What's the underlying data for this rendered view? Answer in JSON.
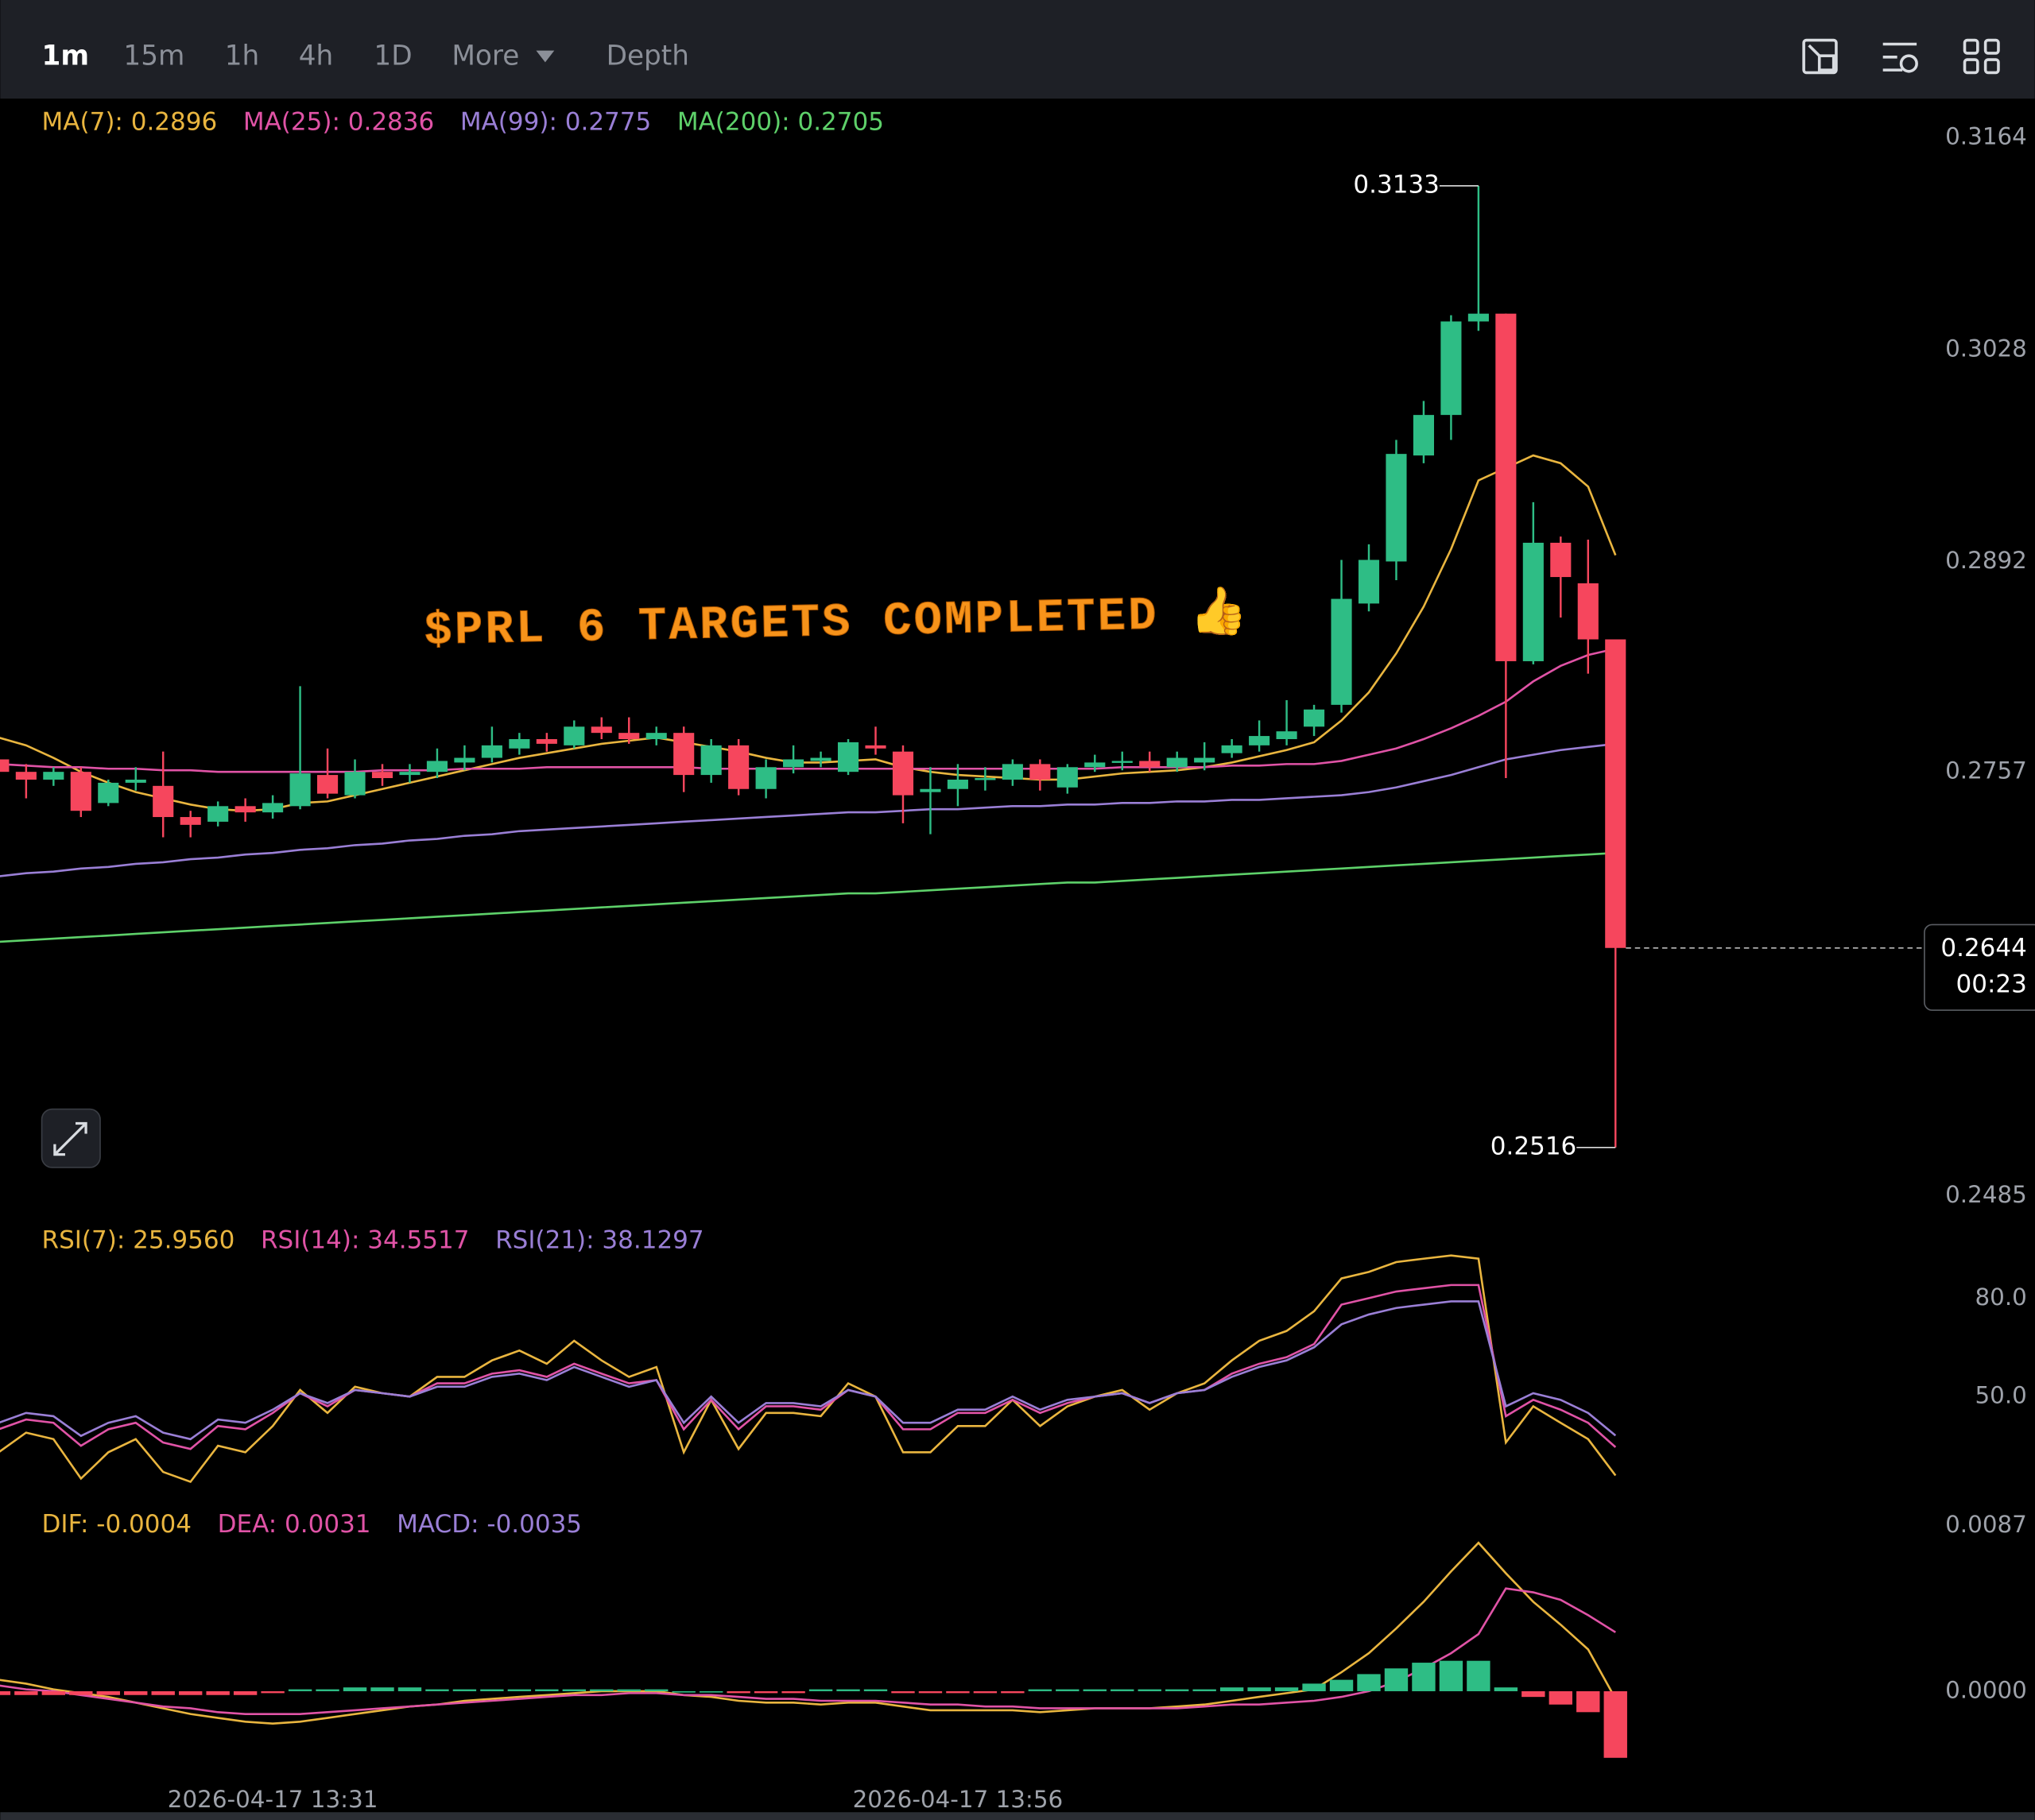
{
  "toolbar": {
    "intervals": [
      "1m",
      "15m",
      "1h",
      "4h",
      "1D"
    ],
    "more": "More",
    "depth": "Depth"
  },
  "chart_data": [
    {
      "type": "candlestick",
      "annotation": "$PRL 6 TARGETS COMPLETED 👍",
      "countdown": "00:23",
      "up_color": "#2ebd85",
      "down_color": "#f6465d",
      "categories": [
        null,
        null,
        null,
        null,
        null,
        null,
        null,
        null,
        null,
        null,
        "2026-04-17 13:31",
        null,
        null,
        null,
        null,
        null,
        null,
        null,
        null,
        null,
        null,
        null,
        null,
        null,
        null,
        null,
        null,
        null,
        null,
        null,
        null,
        null,
        null,
        null,
        null,
        "2026-04-17 13:56",
        null,
        null,
        null,
        null,
        null,
        null,
        null,
        null,
        null,
        null,
        null,
        null,
        null,
        null,
        null,
        null,
        null,
        null,
        null,
        null,
        null,
        null,
        null,
        null
      ],
      "open": [
        0.2765,
        0.2757,
        0.2752,
        0.2757,
        0.2737,
        0.275,
        0.2748,
        0.2728,
        0.2725,
        0.2735,
        0.2731,
        0.2735,
        0.2755,
        0.2742,
        0.2757,
        0.2755,
        0.2757,
        0.2763,
        0.2766,
        0.2772,
        0.2778,
        0.2774,
        0.2786,
        0.2782,
        0.2778,
        0.2782,
        0.2755,
        0.2774,
        0.2746,
        0.276,
        0.2764,
        0.2757,
        0.2774,
        0.277,
        0.2744,
        0.2746,
        0.2752,
        0.2752,
        0.2762,
        0.2747,
        0.276,
        0.2763,
        0.2764,
        0.276,
        0.2763,
        0.2769,
        0.2774,
        0.2778,
        0.2786,
        0.28,
        0.2865,
        0.2892,
        0.296,
        0.2986,
        0.3046,
        0.3051,
        0.2828,
        0.2904,
        0.2878,
        0.2842
      ],
      "high": [
        0.277,
        0.2762,
        0.276,
        0.276,
        0.2752,
        0.276,
        0.277,
        0.2732,
        0.2738,
        0.274,
        0.2742,
        0.2812,
        0.2772,
        0.2765,
        0.2762,
        0.2762,
        0.2772,
        0.2774,
        0.2786,
        0.2782,
        0.2782,
        0.279,
        0.2792,
        0.2792,
        0.2786,
        0.2786,
        0.2778,
        0.2778,
        0.2765,
        0.2774,
        0.277,
        0.2778,
        0.2786,
        0.2774,
        0.276,
        0.2762,
        0.276,
        0.2765,
        0.2765,
        0.2762,
        0.2768,
        0.277,
        0.277,
        0.277,
        0.2776,
        0.2778,
        0.279,
        0.2803,
        0.28,
        0.2893,
        0.2903,
        0.297,
        0.2995,
        0.305,
        0.3133,
        0.3051,
        0.293,
        0.2908,
        0.2906,
        0.2842
      ],
      "low": [
        0.275,
        0.274,
        0.2748,
        0.2728,
        0.2735,
        0.2745,
        0.2715,
        0.2715,
        0.2722,
        0.2725,
        0.2727,
        0.2733,
        0.274,
        0.274,
        0.2748,
        0.275,
        0.2753,
        0.2758,
        0.2763,
        0.2768,
        0.277,
        0.2772,
        0.2778,
        0.2775,
        0.2774,
        0.2744,
        0.275,
        0.2742,
        0.274,
        0.2756,
        0.276,
        0.2755,
        0.2768,
        0.2724,
        0.2717,
        0.2735,
        0.2745,
        0.2748,
        0.2745,
        0.2743,
        0.2757,
        0.2758,
        0.2757,
        0.2757,
        0.2758,
        0.2766,
        0.277,
        0.2774,
        0.278,
        0.2795,
        0.286,
        0.288,
        0.2955,
        0.297,
        0.304,
        0.2753,
        0.2826,
        0.2856,
        0.282,
        0.2516
      ],
      "close": [
        0.2757,
        0.2752,
        0.2757,
        0.2732,
        0.275,
        0.2752,
        0.2728,
        0.2723,
        0.2735,
        0.2731,
        0.2737,
        0.2756,
        0.2743,
        0.2757,
        0.2753,
        0.2757,
        0.2764,
        0.2766,
        0.2774,
        0.2778,
        0.2775,
        0.2786,
        0.2782,
        0.2778,
        0.2782,
        0.2755,
        0.2774,
        0.2746,
        0.276,
        0.2765,
        0.2766,
        0.2776,
        0.2772,
        0.2742,
        0.2746,
        0.2752,
        0.2753,
        0.2762,
        0.2752,
        0.276,
        0.2763,
        0.2764,
        0.276,
        0.2766,
        0.2766,
        0.2774,
        0.278,
        0.2783,
        0.2797,
        0.2868,
        0.2893,
        0.2961,
        0.2986,
        0.3046,
        0.3051,
        0.2828,
        0.2904,
        0.2882,
        0.2842,
        0.2644
      ],
      "series": [
        {
          "name": "MA(7): 0.2896",
          "color": "#e9b53f",
          "values": [
            0.2779,
            0.2774,
            0.2766,
            0.2757,
            0.275,
            0.2744,
            0.274,
            0.2736,
            0.2733,
            0.2732,
            0.2733,
            0.2737,
            0.2738,
            0.2742,
            0.2746,
            0.275,
            0.2754,
            0.2758,
            0.2762,
            0.2766,
            0.2769,
            0.2772,
            0.2775,
            0.2777,
            0.2779,
            0.2776,
            0.2773,
            0.277,
            0.2766,
            0.2763,
            0.2763,
            0.2764,
            0.2765,
            0.276,
            0.2757,
            0.2755,
            0.2754,
            0.2753,
            0.2752,
            0.2752,
            0.2754,
            0.2756,
            0.2757,
            0.2758,
            0.276,
            0.2763,
            0.2767,
            0.2771,
            0.2776,
            0.279,
            0.2808,
            0.2833,
            0.2863,
            0.29,
            0.2944,
            0.2952,
            0.296,
            0.2955,
            0.294,
            0.2896
          ]
        },
        {
          "name": "MA(25): 0.2836",
          "color": "#e053a6",
          "values": [
            0.2762,
            0.2761,
            0.276,
            0.276,
            0.2759,
            0.2759,
            0.2758,
            0.2758,
            0.2757,
            0.2757,
            0.2757,
            0.2757,
            0.2757,
            0.2757,
            0.2758,
            0.2758,
            0.2758,
            0.2759,
            0.2759,
            0.2759,
            0.276,
            0.276,
            0.276,
            0.276,
            0.276,
            0.276,
            0.2759,
            0.2759,
            0.2759,
            0.2759,
            0.2759,
            0.2759,
            0.2759,
            0.2759,
            0.2759,
            0.2759,
            0.2759,
            0.2759,
            0.2759,
            0.2759,
            0.2759,
            0.276,
            0.276,
            0.276,
            0.276,
            0.2761,
            0.2761,
            0.2762,
            0.2762,
            0.2764,
            0.2768,
            0.2772,
            0.2778,
            0.2785,
            0.2793,
            0.2802,
            0.2815,
            0.2825,
            0.2832,
            0.2836
          ]
        },
        {
          "name": "MA(99): 0.2775",
          "color": "#9a7fd6",
          "values": [
            0.269,
            0.2692,
            0.2693,
            0.2695,
            0.2696,
            0.2698,
            0.2699,
            0.2701,
            0.2702,
            0.2704,
            0.2705,
            0.2707,
            0.2708,
            0.271,
            0.2711,
            0.2713,
            0.2714,
            0.2716,
            0.2717,
            0.2719,
            0.272,
            0.2721,
            0.2722,
            0.2723,
            0.2724,
            0.2725,
            0.2726,
            0.2727,
            0.2728,
            0.2729,
            0.273,
            0.2731,
            0.2731,
            0.2732,
            0.2733,
            0.2733,
            0.2734,
            0.2735,
            0.2735,
            0.2736,
            0.2736,
            0.2737,
            0.2737,
            0.2738,
            0.2738,
            0.2739,
            0.2739,
            0.274,
            0.2741,
            0.2742,
            0.2744,
            0.2747,
            0.2751,
            0.2755,
            0.276,
            0.2765,
            0.2768,
            0.2771,
            0.2773,
            0.2775
          ]
        },
        {
          "name": "MA(200): 0.2705",
          "color": "#5ed16a",
          "values": [
            0.2648,
            0.2649,
            0.265,
            0.2651,
            0.2652,
            0.2653,
            0.2654,
            0.2655,
            0.2656,
            0.2657,
            0.2658,
            0.2659,
            0.266,
            0.2661,
            0.2662,
            0.2663,
            0.2664,
            0.2665,
            0.2666,
            0.2667,
            0.2668,
            0.2669,
            0.267,
            0.2671,
            0.2672,
            0.2673,
            0.2674,
            0.2675,
            0.2676,
            0.2677,
            0.2678,
            0.2679,
            0.2679,
            0.268,
            0.2681,
            0.2682,
            0.2683,
            0.2684,
            0.2685,
            0.2686,
            0.2686,
            0.2687,
            0.2688,
            0.2689,
            0.269,
            0.2691,
            0.2692,
            0.2693,
            0.2694,
            0.2695,
            0.2696,
            0.2697,
            0.2698,
            0.2699,
            0.27,
            0.2701,
            0.2702,
            0.2703,
            0.2704,
            0.2705
          ]
        }
      ],
      "ylim": [
        0.2474,
        0.3189
      ],
      "yticks": [
        0.2485,
        0.2757,
        0.2892,
        0.3028,
        0.3164
      ]
    },
    {
      "type": "line",
      "series": [
        {
          "name": "RSI(7): 25.9560",
          "color": "#e9b53f",
          "values": [
            33,
            39,
            37,
            25,
            33,
            37,
            27,
            24,
            35,
            33,
            41,
            52,
            45,
            53,
            51,
            50,
            56,
            56,
            61,
            64,
            60,
            67,
            61,
            56,
            59,
            33,
            49,
            34,
            45,
            45,
            44,
            54,
            50,
            33,
            33,
            41,
            41,
            49,
            41,
            47,
            50,
            52,
            46,
            51,
            54,
            61,
            67,
            70,
            76,
            86,
            88,
            91,
            92,
            93,
            92,
            36,
            47,
            42,
            37,
            25.956
          ]
        },
        {
          "name": "RSI(14): 34.5517",
          "color": "#e053a6",
          "values": [
            40,
            43,
            42,
            35,
            40,
            42,
            36,
            34,
            41,
            40,
            45,
            51,
            47,
            52,
            51,
            50,
            54,
            54,
            57,
            58,
            56,
            60,
            57,
            54,
            55,
            40,
            49,
            40,
            47,
            47,
            46,
            52,
            50,
            40,
            40,
            45,
            45,
            49,
            45,
            48,
            50,
            51,
            48,
            51,
            52,
            57,
            60,
            62,
            66,
            78,
            80,
            82,
            83,
            84,
            84,
            44,
            49,
            46,
            42,
            34.5517
          ]
        },
        {
          "name": "RSI(21): 38.1297",
          "color": "#9a7fd6",
          "values": [
            42,
            45,
            44,
            38,
            42,
            44,
            39,
            37,
            43,
            42,
            46,
            51,
            48,
            52,
            51,
            50,
            53,
            53,
            56,
            57,
            55,
            59,
            56,
            53,
            55,
            42,
            50,
            42,
            48,
            48,
            47,
            52,
            50,
            42,
            42,
            46,
            46,
            50,
            46,
            49,
            50,
            51,
            48,
            51,
            52,
            56,
            59,
            61,
            65,
            72,
            75,
            77,
            78,
            79,
            79,
            47,
            51,
            49,
            45,
            38.1297
          ]
        }
      ],
      "ylim": [
        17,
        104
      ],
      "yticks": [
        {
          "value": 50,
          "label": "50.0"
        },
        {
          "value": 80,
          "label": "80.0"
        }
      ]
    },
    {
      "type": "macd",
      "up_color": "#2ebd85",
      "down_color": "#f6465d",
      "series": [
        {
          "name": "DIF: -0.0004",
          "color": "#e9b53f",
          "values": [
            0.0006,
            0.0004,
            0.0001,
            -0.0001,
            -0.0003,
            -0.0006,
            -0.0009,
            -0.0012,
            -0.0014,
            -0.0016,
            -0.0017,
            -0.0016,
            -0.0014,
            -0.0012,
            -0.001,
            -0.0008,
            -0.0007,
            -0.0005,
            -0.0004,
            -0.0003,
            -0.0002,
            -0.0001,
            0,
            0,
            0,
            -0.0002,
            -0.0003,
            -0.0005,
            -0.0006,
            -0.0006,
            -0.0007,
            -0.0006,
            -0.0006,
            -0.0008,
            -0.001,
            -0.001,
            -0.001,
            -0.001,
            -0.0011,
            -0.001,
            -0.0009,
            -0.0009,
            -0.0009,
            -0.0008,
            -0.0007,
            -0.0005,
            -0.0003,
            -0.0001,
            0.0001,
            0.001,
            0.002,
            0.0033,
            0.0047,
            0.0063,
            0.0078,
            0.0062,
            0.0047,
            0.0035,
            0.0022,
            -0.0004
          ]
        },
        {
          "name": "DEA: 0.0031",
          "color": "#e053a6",
          "values": [
            0.0003,
            0.0001,
            0,
            -0.0002,
            -0.0004,
            -0.0006,
            -0.0008,
            -0.0009,
            -0.0011,
            -0.0012,
            -0.0012,
            -0.0012,
            -0.0011,
            -0.001,
            -0.0009,
            -0.0008,
            -0.0007,
            -0.0006,
            -0.0005,
            -0.0004,
            -0.0003,
            -0.0002,
            -0.0002,
            -0.0001,
            -0.0001,
            -0.0002,
            -0.0002,
            -0.0003,
            -0.0004,
            -0.0004,
            -0.0005,
            -0.0005,
            -0.0005,
            -0.0006,
            -0.0007,
            -0.0007,
            -0.0008,
            -0.0008,
            -0.0009,
            -0.0009,
            -0.0009,
            -0.0009,
            -0.0009,
            -0.0009,
            -0.0008,
            -0.0007,
            -0.0007,
            -0.0006,
            -0.0005,
            -0.0003,
            0,
            0.0005,
            0.0012,
            0.002,
            0.003,
            0.0054,
            0.0052,
            0.0048,
            0.004,
            0.0031
          ]
        },
        {
          "name": "MACD: -0.0035",
          "color": "#9a7fd6",
          "style": "bar",
          "values": [
            -0.0002,
            -0.0002,
            -0.0002,
            -0.0002,
            -0.0002,
            -0.0002,
            -0.0002,
            -0.0002,
            -0.0002,
            -0.0002,
            -0.0001,
            0.0001,
            0.0001,
            0.0002,
            0.0002,
            0.0002,
            0.0001,
            0.0001,
            0.0001,
            0.0001,
            0.0001,
            0.0001,
            0.0001,
            0.0001,
            0.0001,
            0,
            0,
            -0.0001,
            -0.0001,
            -0.0001,
            0.0001,
            0.0001,
            0.0001,
            -0.0001,
            -0.0001,
            -0.0001,
            -0.0001,
            -0.0001,
            0.0001,
            0.0001,
            0.0001,
            0.0001,
            0.0001,
            0.0001,
            0.0001,
            0.0002,
            0.0002,
            0.0002,
            0.0004,
            0.0006,
            0.0009,
            0.0012,
            0.0015,
            0.0016,
            0.0016,
            0.0002,
            -0.0003,
            -0.0007,
            -0.0011,
            -0.0035
          ]
        }
      ],
      "ylim": [
        -0.0052,
        0.0098
      ],
      "yticks": [
        {
          "value": 0,
          "label": "0.0000"
        },
        0.0087
      ]
    }
  ]
}
